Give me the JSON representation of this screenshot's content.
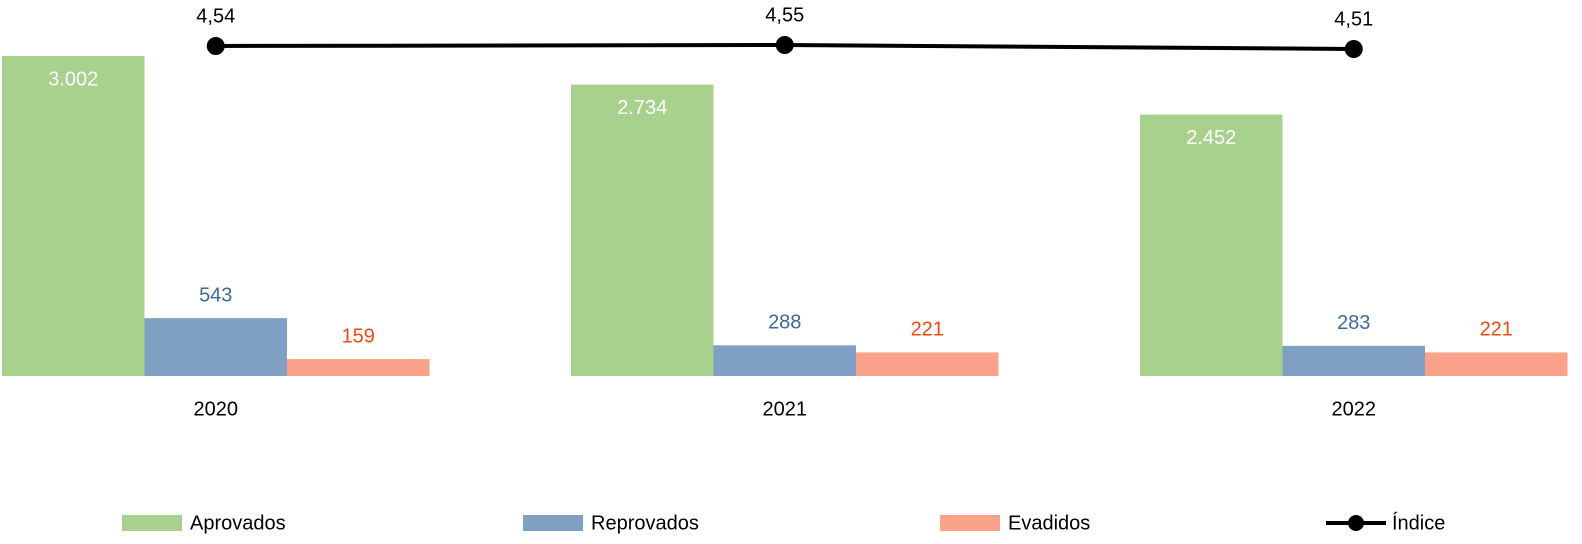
{
  "chart_data": {
    "type": "bar",
    "categories": [
      "2020",
      "2021",
      "2022"
    ],
    "series": [
      {
        "name": "Aprovados",
        "color": "#a9d18e",
        "label_color": "#ffffff",
        "values": [
          3002,
          2734,
          2452
        ],
        "value_labels": [
          "3.002",
          "2.734",
          "2.452"
        ]
      },
      {
        "name": "Reprovados",
        "color": "#7f9fc3",
        "label_color": "#3b6aa0",
        "values": [
          543,
          288,
          283
        ]
      },
      {
        "name": "Evadidos",
        "color": "#fba38a",
        "label_color": "#f04a10",
        "values": [
          159,
          221,
          221
        ]
      },
      {
        "name": "Índice",
        "type": "line",
        "axis": "y2",
        "color": "#000000",
        "label_color": "#000000",
        "values": [
          4.54,
          4.55,
          4.51
        ],
        "value_labels": [
          "4,54",
          "4,55",
          "4,51"
        ]
      }
    ]
  }
}
